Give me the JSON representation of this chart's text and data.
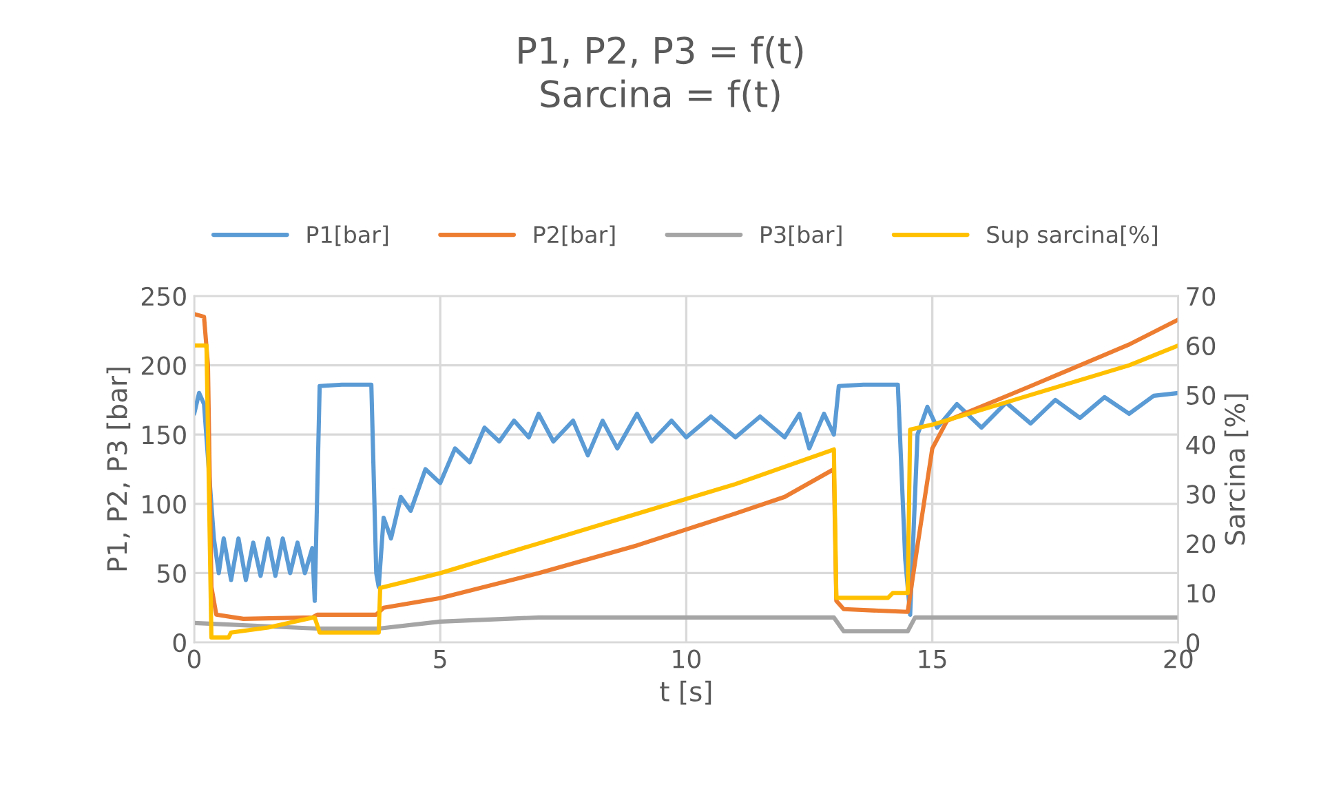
{
  "chart_data": {
    "type": "line",
    "title": "P1, P2, P3 = f(t)\nSarcina = f(t)",
    "xlabel": "t [s]",
    "ylabel": "P1, P2, P3 [bar]",
    "y2label": "Sarcina [%]",
    "xlim": [
      0,
      20
    ],
    "xticks": [
      0,
      5,
      10,
      15,
      20
    ],
    "ylim": [
      0,
      250
    ],
    "yticks": [
      0,
      50,
      100,
      150,
      200,
      250
    ],
    "y2lim": [
      0,
      70
    ],
    "y2ticks": [
      0,
      10,
      20,
      30,
      40,
      50,
      60,
      70
    ],
    "grid": true,
    "legend": "top",
    "marker": "none",
    "line_style": "solid",
    "series": [
      {
        "name": "P1[bar]",
        "color": "#5b9bd5",
        "x": [
          0,
          0.1,
          0.2,
          0.4,
          0.5,
          0.6,
          0.75,
          0.9,
          1.05,
          1.2,
          1.35,
          1.5,
          1.65,
          1.8,
          1.95,
          2.1,
          2.25,
          2.4,
          2.45,
          2.55,
          3.0,
          3.6,
          3.7,
          3.75,
          3.85,
          4.0,
          4.2,
          4.4,
          4.7,
          5.0,
          5.3,
          5.6,
          5.9,
          6.2,
          6.5,
          6.8,
          7.0,
          7.3,
          7.7,
          8.0,
          8.3,
          8.6,
          9.0,
          9.3,
          9.7,
          10.0,
          10.5,
          11.0,
          11.5,
          12.0,
          12.3,
          12.5,
          12.8,
          13.0,
          13.1,
          13.6,
          14.3,
          14.45,
          14.55,
          14.7,
          14.9,
          15.1,
          15.5,
          16.0,
          16.5,
          17.0,
          17.5,
          18.0,
          18.5,
          19.0,
          19.5,
          20.0
        ],
        "values": [
          165,
          180,
          172,
          75,
          50,
          75,
          45,
          75,
          45,
          72,
          48,
          75,
          48,
          75,
          50,
          72,
          50,
          68,
          30,
          185,
          186,
          186,
          50,
          40,
          90,
          75,
          105,
          95,
          125,
          115,
          140,
          130,
          155,
          145,
          160,
          148,
          165,
          145,
          160,
          135,
          160,
          140,
          165,
          145,
          160,
          148,
          163,
          148,
          163,
          148,
          165,
          140,
          165,
          150,
          185,
          186,
          186,
          60,
          20,
          150,
          170,
          155,
          172,
          155,
          173,
          158,
          175,
          162,
          177,
          165,
          178,
          180
        ]
      },
      {
        "name": "P2[bar]",
        "color": "#ed7d31",
        "x": [
          0,
          0.2,
          0.28,
          0.35,
          0.45,
          1.0,
          2.4,
          2.5,
          3.7,
          3.85,
          5,
          7,
          9,
          11,
          12,
          13,
          13.05,
          13.2,
          14.5,
          14.7,
          15.0,
          15.3,
          17,
          18,
          19,
          20
        ],
        "values": [
          237,
          235,
          200,
          40,
          20,
          17,
          18,
          20,
          20,
          25,
          32,
          50,
          70,
          93,
          105,
          125,
          30,
          24,
          22,
          70,
          140,
          160,
          185,
          200,
          215,
          233
        ]
      },
      {
        "name": "P3[bar]",
        "color": "#a5a5a5",
        "x": [
          0,
          2.5,
          3.75,
          5,
          7,
          13,
          13.2,
          14.5,
          14.65,
          20
        ],
        "values": [
          14,
          10,
          10,
          15,
          18,
          18,
          8,
          8,
          18,
          18
        ]
      },
      {
        "name": "Sup sarcina[%]",
        "color": "#ffc000",
        "axis": "y2",
        "x": [
          0,
          0.25,
          0.35,
          0.7,
          0.75,
          1.5,
          2.4,
          2.45,
          2.55,
          3.75,
          3.78,
          5,
          7,
          9,
          11,
          13,
          13.05,
          14.1,
          14.2,
          14.5,
          14.55,
          15,
          17,
          19,
          20
        ],
        "values": [
          60,
          60,
          1,
          1,
          2,
          3,
          5,
          5,
          2,
          2,
          11,
          14,
          20,
          26,
          32,
          39,
          9,
          9,
          10,
          10,
          43,
          44,
          50,
          56,
          60
        ]
      }
    ]
  }
}
